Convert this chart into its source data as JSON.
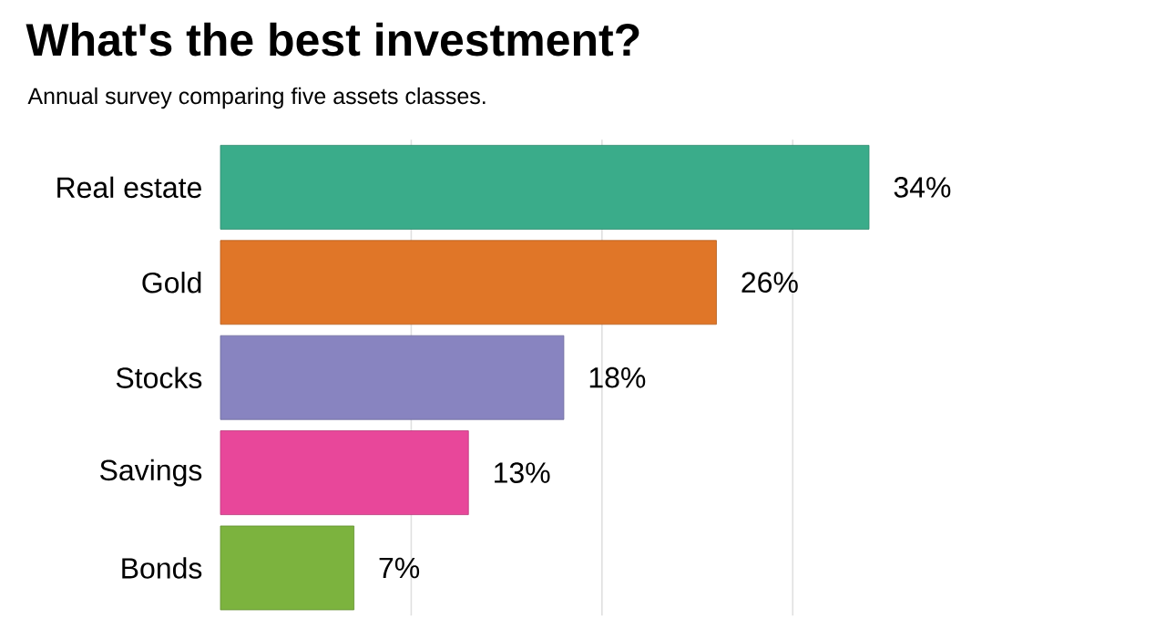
{
  "chart_data": {
    "type": "bar",
    "orientation": "horizontal",
    "title": "What's the best investment?",
    "subtitle": "Annual survey comparing five assets classes.",
    "categories": [
      "Real estate",
      "Gold",
      "Stocks",
      "Savings",
      "Bonds"
    ],
    "values": [
      34,
      26,
      18,
      13,
      7
    ],
    "colors": [
      "#3aac8a",
      "#e07628",
      "#8884c0",
      "#e8479a",
      "#7cb33e"
    ],
    "value_labels": [
      "34%",
      "26%",
      "18%",
      "13%",
      "7%"
    ],
    "xticks": [
      {
        "value": 10,
        "label": null
      },
      {
        "value": 20,
        "label": null
      },
      {
        "value": 30,
        "label": null
      }
    ],
    "grid": "x",
    "tick_labels": "y"
  }
}
